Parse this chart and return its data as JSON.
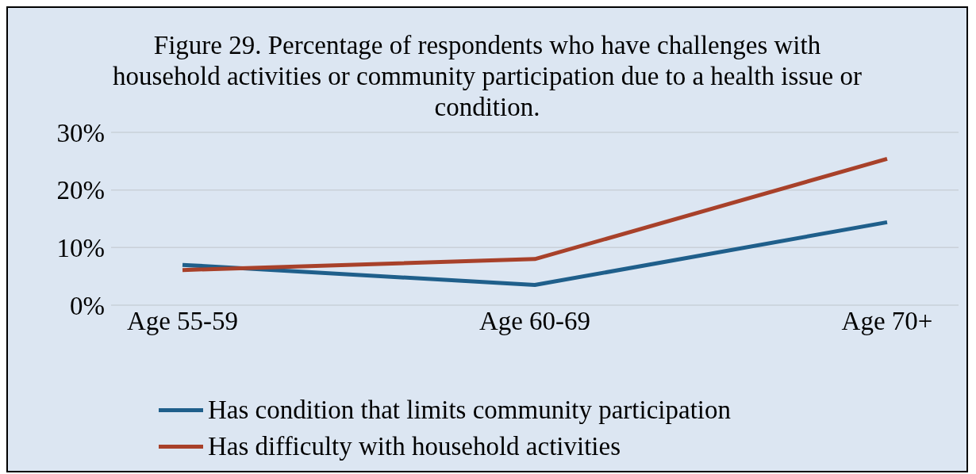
{
  "chart_data": {
    "type": "line",
    "title": "Figure 29. Percentage of respondents who have challenges with household activities or community participation due to a health issue or condition.",
    "categories": [
      "Age 55-59",
      "Age 60-69",
      "Age 70+"
    ],
    "series": [
      {
        "name": "Has condition that limits community participation",
        "color": "#1f5f8b",
        "values": [
          7.0,
          3.5,
          14.4
        ]
      },
      {
        "name": "Has difficulty with household activities",
        "color": "#a8412a",
        "values": [
          6.1,
          8.0,
          25.4
        ]
      }
    ],
    "ylim": [
      0,
      30
    ],
    "yticks": [
      {
        "value": 0,
        "label": "0%"
      },
      {
        "value": 10,
        "label": "10%"
      },
      {
        "value": 20,
        "label": "20%"
      },
      {
        "value": 30,
        "label": "30%"
      }
    ],
    "grid": "y",
    "legend": "bottom",
    "marker": "none",
    "line_style": "solid"
  }
}
